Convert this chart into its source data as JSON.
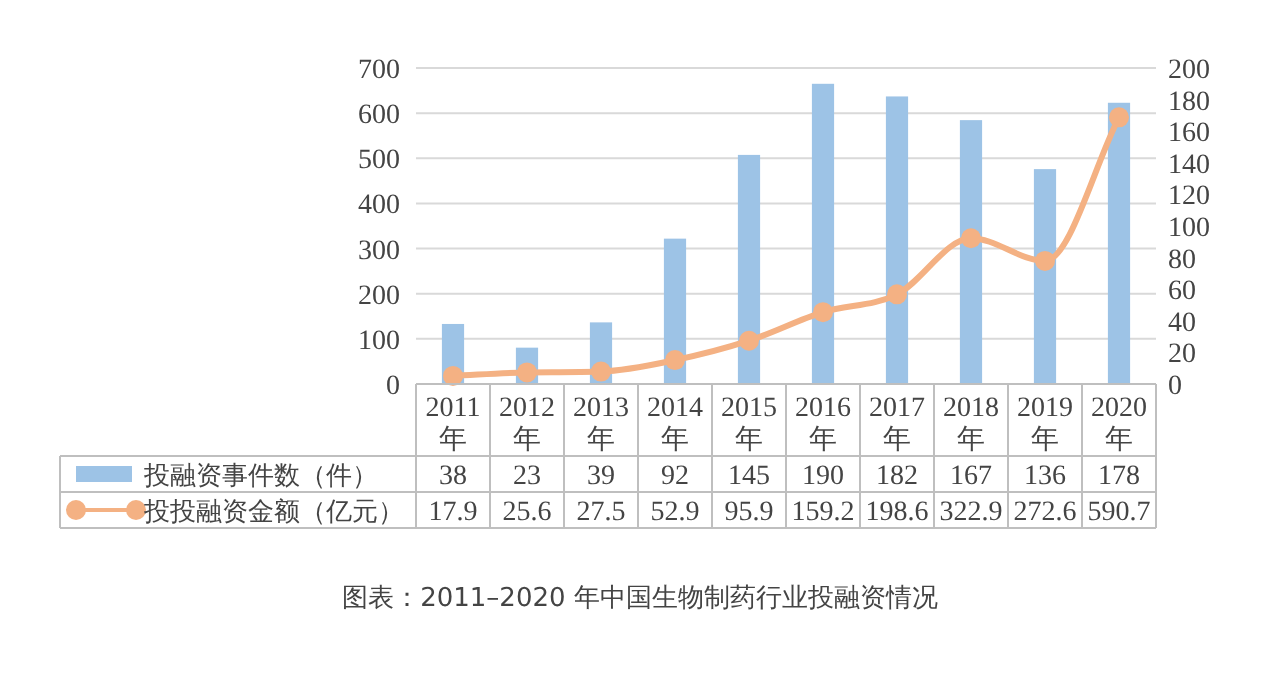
{
  "chart_data": {
    "type": "bar",
    "categories": [
      "2011年",
      "2012年",
      "2013年",
      "2014年",
      "2015年",
      "2016年",
      "2017年",
      "2018年",
      "2019年",
      "2020年"
    ],
    "series": [
      {
        "name": "投融资事件数（件）",
        "axis": "y2",
        "color": "#9dc3e6",
        "values": [
          38,
          23,
          39,
          92,
          145,
          190,
          182,
          167,
          136,
          178
        ]
      },
      {
        "name": "投投融资金额（亿元）",
        "type": "line",
        "color": "#f4b183",
        "marker": "circle",
        "values": [
          17.9,
          25.6,
          27.5,
          52.9,
          95.9,
          159.2,
          198.6,
          322.9,
          272.6,
          590.7
        ]
      }
    ],
    "ylim": [
      0,
      700
    ],
    "yticks": [
      0,
      100,
      200,
      300,
      400,
      500,
      600,
      700
    ],
    "y2lim": [
      0,
      200
    ],
    "y2ticks": [
      0,
      20,
      40,
      60,
      80,
      100,
      120,
      140,
      160,
      180,
      200
    ],
    "grid": "y",
    "legend": "bottom",
    "data_labels": true,
    "annotations": [
      "图表：2011–2020 年中国生物制药行业投融资情况"
    ]
  }
}
